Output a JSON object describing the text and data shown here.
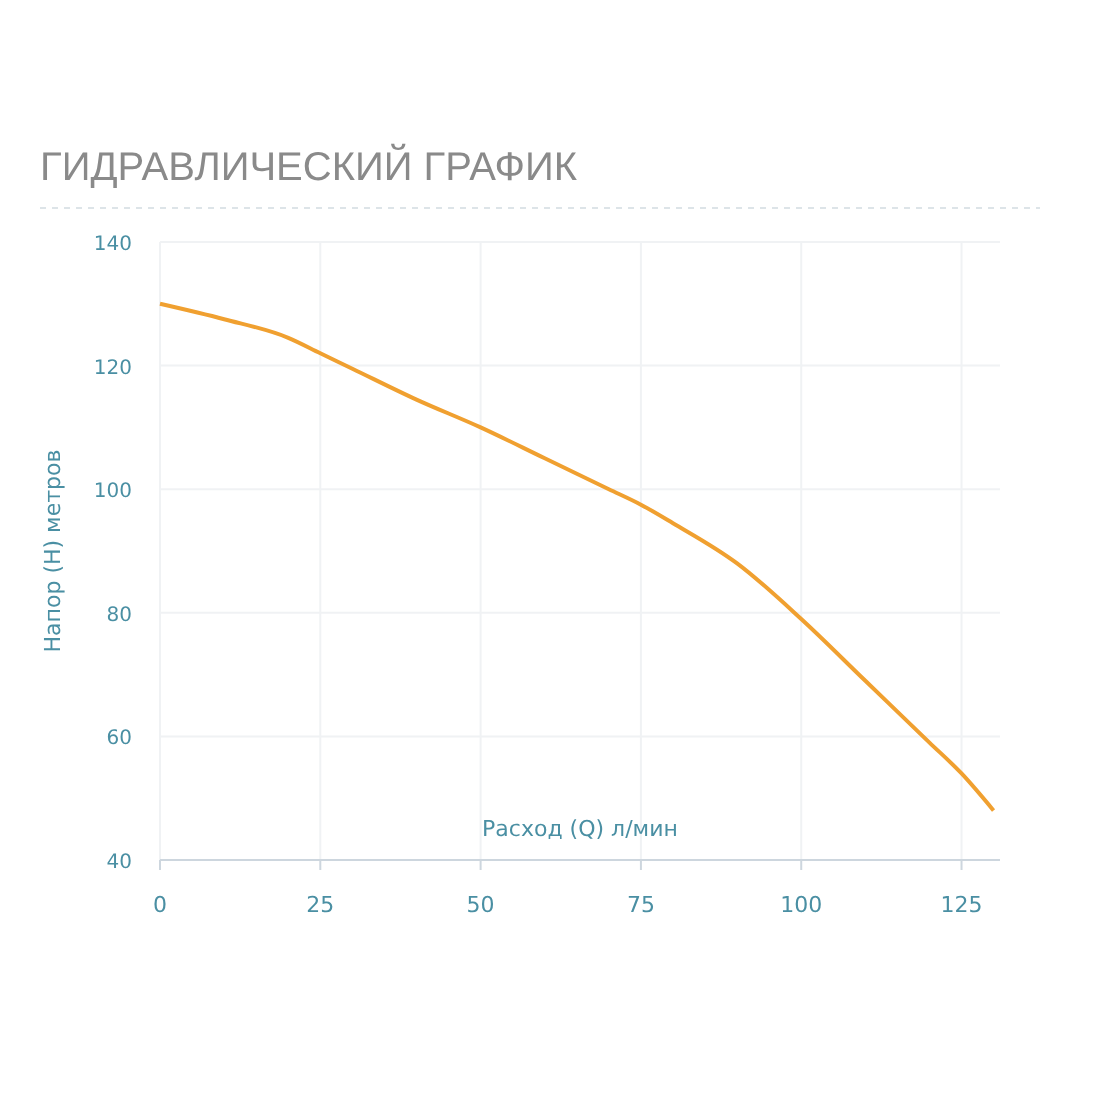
{
  "chart_data": {
    "type": "line",
    "title": "ГИДРАВЛИЧЕСКИЙ ГРАФИК",
    "xlabel": "Расход (Q) л/мин",
    "ylabel": "Напор (Н) метров",
    "x": [
      0,
      10,
      20,
      25,
      30,
      40,
      50,
      60,
      70,
      75,
      80,
      90,
      100,
      110,
      120,
      125,
      130
    ],
    "series": [
      {
        "color": "#f0a030",
        "values": [
          130,
          127.5,
          124.5,
          122,
          119.5,
          114.5,
          110,
          105,
          100,
          97.5,
          94.5,
          88,
          79,
          69,
          59,
          54,
          48
        ]
      }
    ],
    "xlim": [
      0,
      131
    ],
    "xticks": [
      0,
      25,
      50,
      75,
      100,
      125
    ],
    "ylim": [
      40,
      140
    ],
    "yticks": [
      40,
      60,
      80,
      100,
      120,
      140
    ],
    "grid": true,
    "marker": "none",
    "line_style": "solid"
  }
}
